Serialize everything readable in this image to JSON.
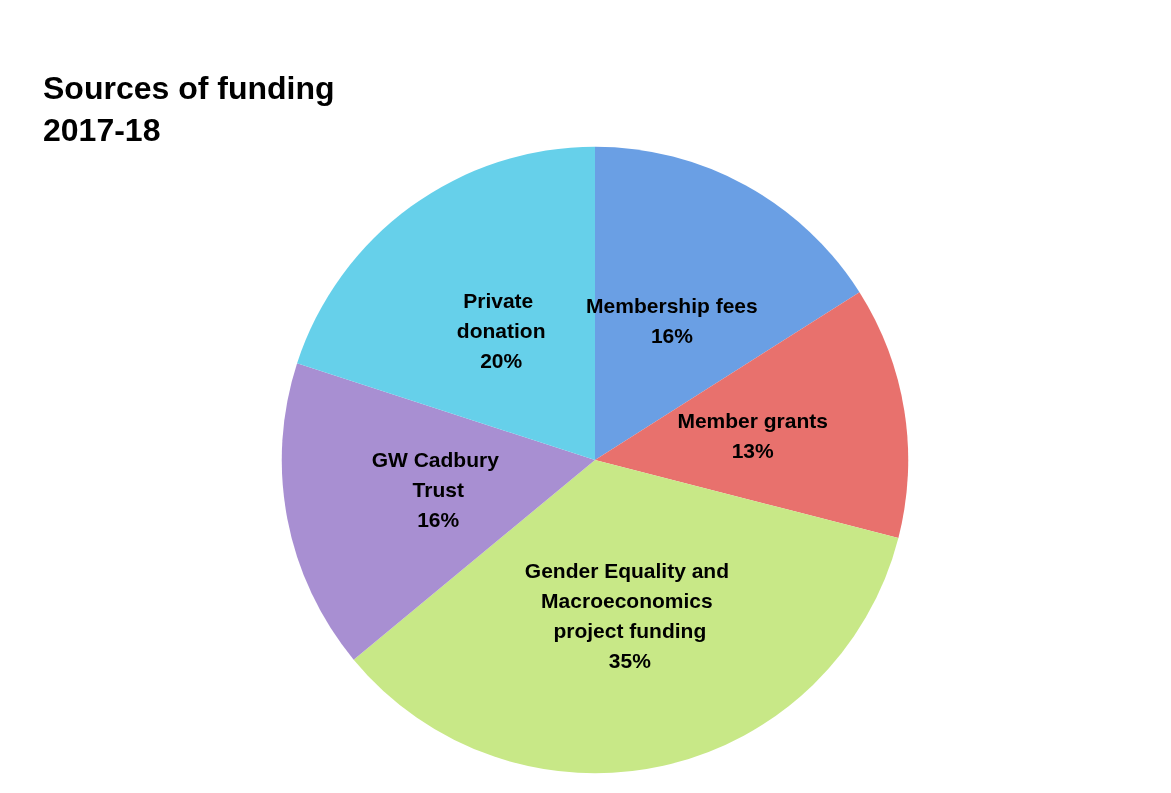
{
  "chart_data": {
    "type": "pie",
    "title": "Sources of funding\n2017-18",
    "categories": [
      "Membership fees",
      "Member grants",
      "Gender Equality and Macroeconomics project funding",
      "GW Cadbury Trust",
      "Private donation"
    ],
    "values": [
      16,
      13,
      35,
      16,
      20
    ],
    "value_labels": [
      "16%",
      "13%",
      "35%",
      "16%",
      "20%"
    ],
    "colors": [
      "#6a9fe4",
      "#e8716d",
      "#c8e887",
      "#a88fd2",
      "#66d0ea"
    ],
    "legend": false
  }
}
